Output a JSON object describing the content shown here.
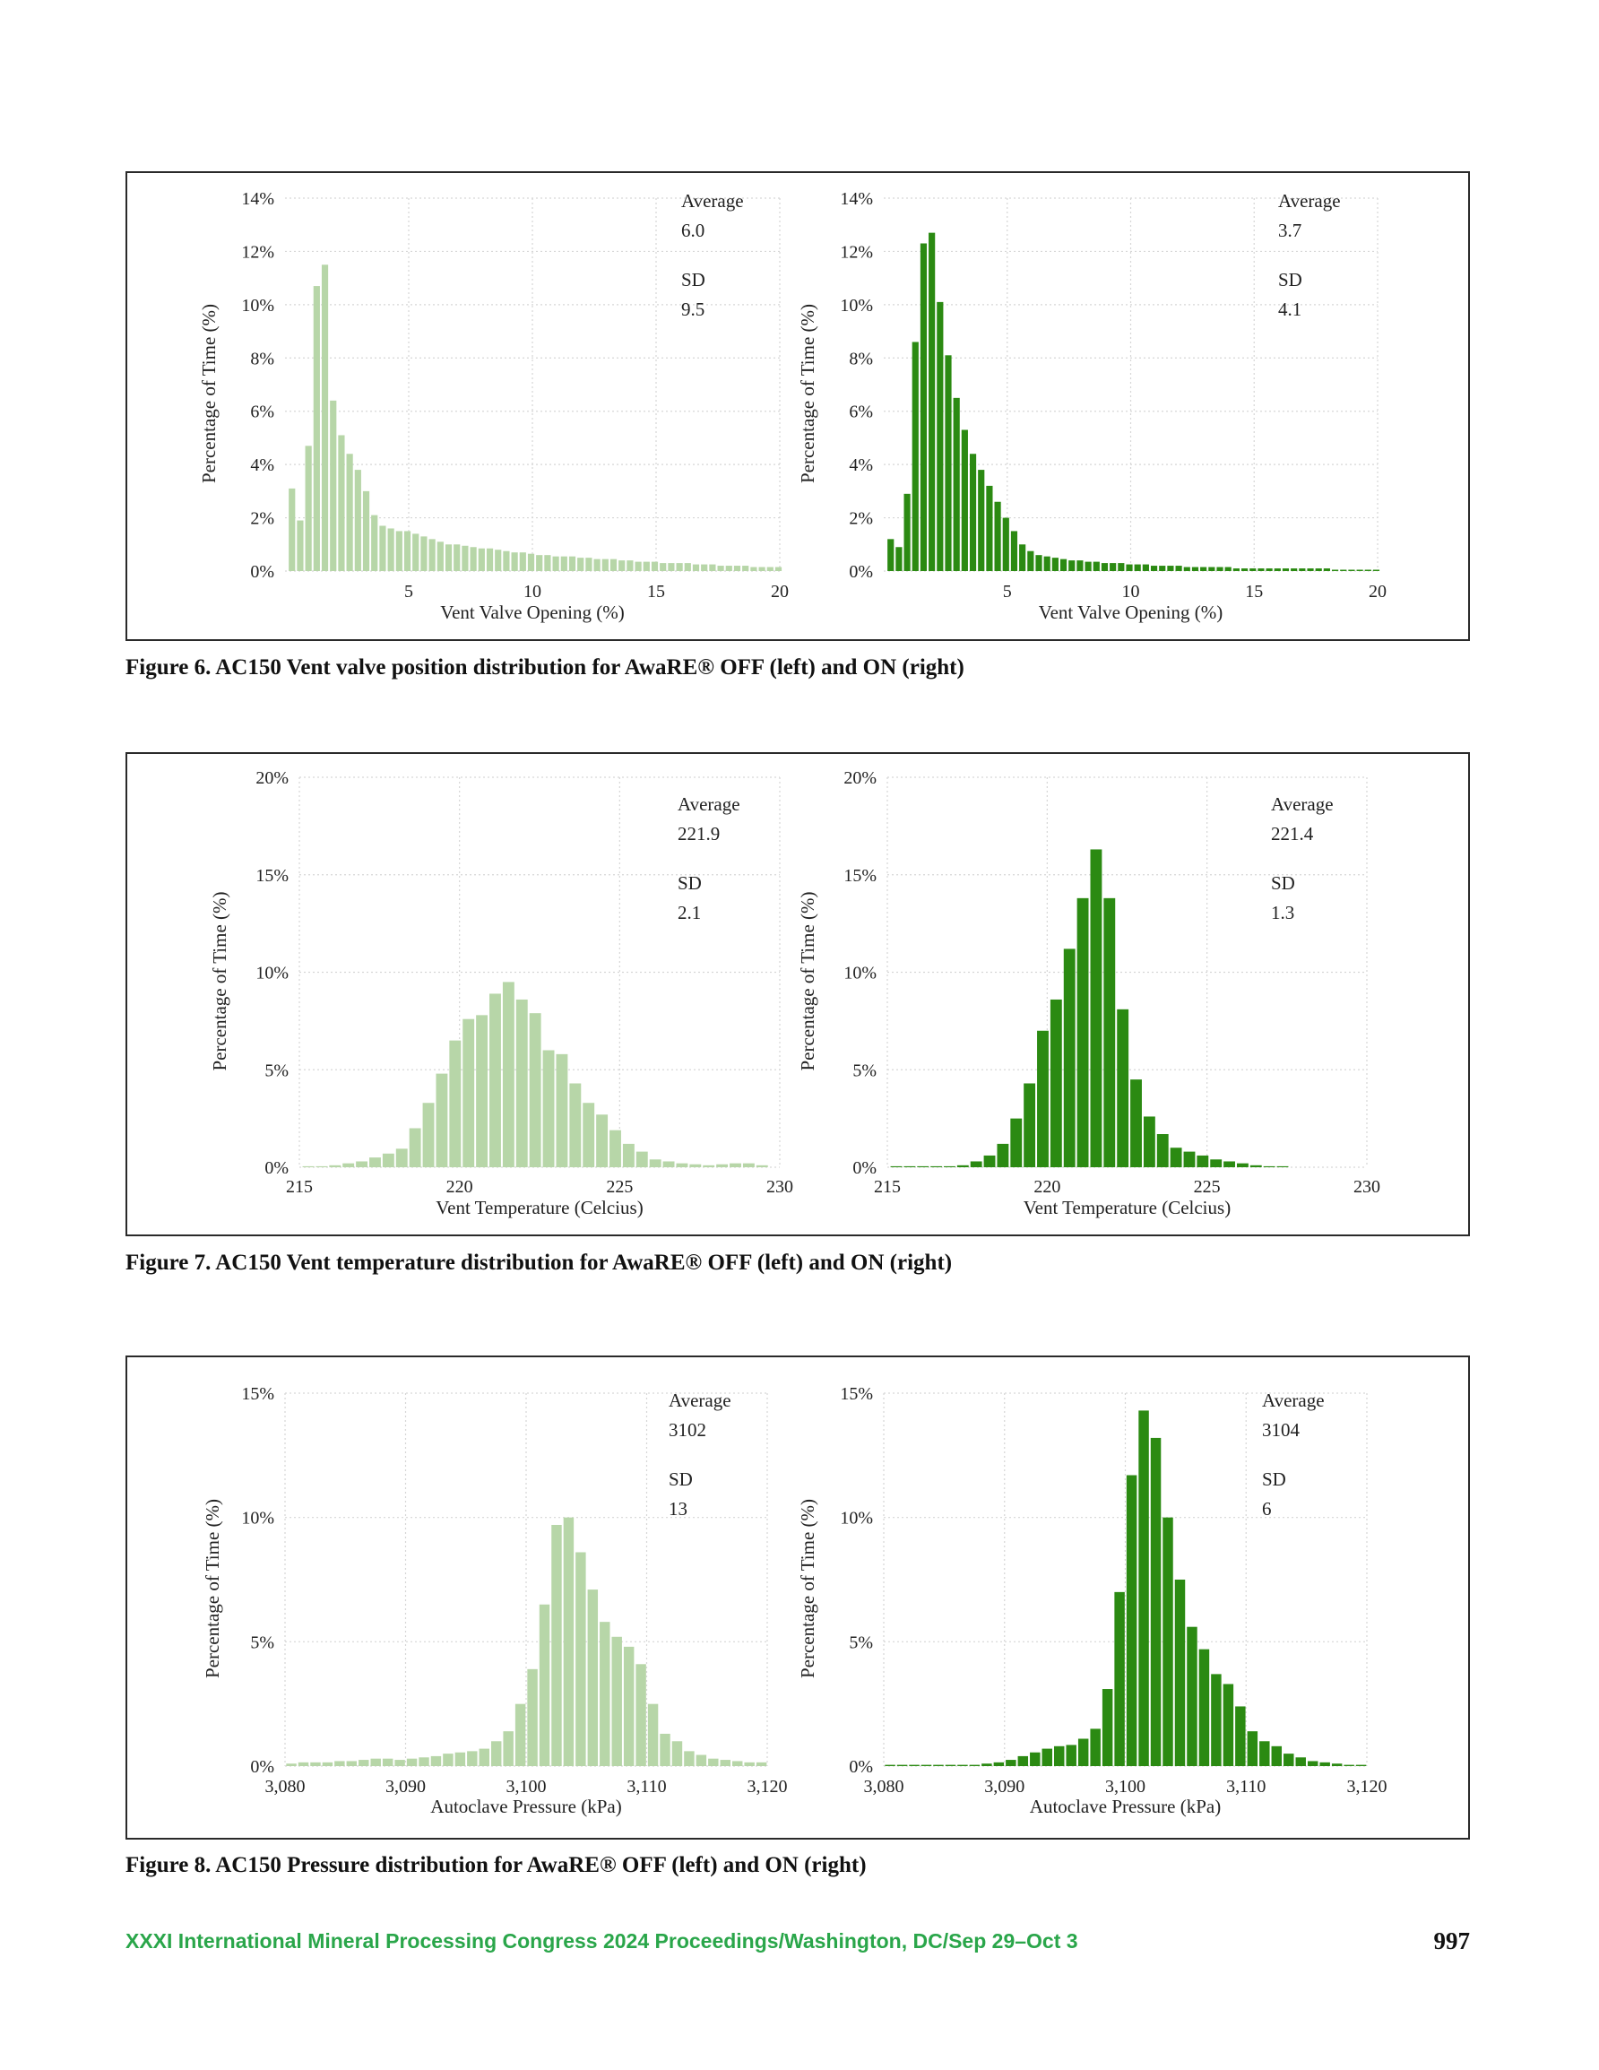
{
  "figures": [
    {
      "caption": "Figure 6. AC150 Vent valve position distribution for AwaRE® OFF (left) and ON (right)",
      "charts": [
        {
          "type": "bar",
          "panel": "left",
          "ylabel": "Percentage of Time (%)",
          "xlabel": "Vent Valve Opening (%)",
          "yticks": [
            "0%",
            "2%",
            "4%",
            "6%",
            "8%",
            "10%",
            "12%",
            "14%"
          ],
          "ylim": [
            0,
            14
          ],
          "xticks": [
            "5",
            "10",
            "15",
            "20"
          ],
          "xtick_values": [
            5,
            10,
            15,
            20
          ],
          "xlim": [
            0,
            20
          ],
          "bin_start": 0.15,
          "bin_width": 0.3333,
          "values": [
            3.1,
            1.9,
            4.7,
            10.7,
            11.5,
            6.4,
            5.1,
            4.4,
            3.8,
            3.0,
            2.1,
            1.7,
            1.6,
            1.5,
            1.5,
            1.4,
            1.3,
            1.2,
            1.1,
            1.0,
            1.0,
            0.95,
            0.9,
            0.85,
            0.85,
            0.8,
            0.75,
            0.7,
            0.7,
            0.65,
            0.6,
            0.6,
            0.55,
            0.55,
            0.55,
            0.5,
            0.5,
            0.45,
            0.45,
            0.45,
            0.4,
            0.4,
            0.35,
            0.35,
            0.35,
            0.3,
            0.3,
            0.3,
            0.3,
            0.25,
            0.25,
            0.25,
            0.2,
            0.2,
            0.2,
            0.2,
            0.15,
            0.15,
            0.15,
            0.15
          ],
          "stats": {
            "average_label": "Average",
            "average": "6.0",
            "sd_label": "SD",
            "sd": "9.5"
          },
          "color": "#b7d6a8"
        },
        {
          "type": "bar",
          "panel": "right",
          "ylabel": "Percentage of Time (%)",
          "xlabel": "Vent Valve Opening (%)",
          "yticks": [
            "0%",
            "2%",
            "4%",
            "6%",
            "8%",
            "10%",
            "12%",
            "14%"
          ],
          "ylim": [
            0,
            14
          ],
          "xticks": [
            "5",
            "10",
            "15",
            "20"
          ],
          "xtick_values": [
            5,
            10,
            15,
            20
          ],
          "xlim": [
            0,
            20
          ],
          "bin_start": 0.15,
          "bin_width": 0.3333,
          "values": [
            1.2,
            0.9,
            2.9,
            8.6,
            12.3,
            12.7,
            10.1,
            8.1,
            6.5,
            5.3,
            4.4,
            3.8,
            3.2,
            2.6,
            2.0,
            1.5,
            1.0,
            0.75,
            0.6,
            0.55,
            0.5,
            0.45,
            0.4,
            0.4,
            0.35,
            0.35,
            0.3,
            0.3,
            0.3,
            0.25,
            0.25,
            0.25,
            0.2,
            0.2,
            0.2,
            0.2,
            0.15,
            0.15,
            0.15,
            0.15,
            0.15,
            0.15,
            0.1,
            0.1,
            0.1,
            0.1,
            0.1,
            0.1,
            0.1,
            0.1,
            0.1,
            0.1,
            0.1,
            0.1,
            0.05,
            0.05,
            0.05,
            0.05,
            0.05,
            0.05
          ],
          "stats": {
            "average_label": "Average",
            "average": "3.7",
            "sd_label": "SD",
            "sd": "4.1"
          },
          "color": "#2b8a12"
        }
      ]
    },
    {
      "caption": "Figure 7. AC150 Vent temperature distribution for AwaRE® OFF (left) and ON (right)",
      "charts": [
        {
          "type": "bar",
          "panel": "left",
          "ylabel": "Percentage of Time (%)",
          "xlabel": "Vent Temperature (Celcius)",
          "yticks": [
            "0%",
            "5%",
            "10%",
            "15%",
            "20%"
          ],
          "ylim": [
            0,
            20
          ],
          "xticks": [
            "215",
            "220",
            "225",
            "230"
          ],
          "xtick_values": [
            215,
            220,
            225,
            230
          ],
          "xlim": [
            215,
            230
          ],
          "bin_start": 215.1,
          "bin_width": 0.4167,
          "values": [
            0.05,
            0.05,
            0.1,
            0.2,
            0.3,
            0.5,
            0.7,
            0.95,
            2.0,
            3.3,
            4.8,
            6.5,
            7.6,
            7.8,
            8.9,
            9.5,
            8.6,
            7.9,
            6.0,
            5.8,
            4.3,
            3.3,
            2.7,
            1.9,
            1.2,
            0.8,
            0.4,
            0.3,
            0.2,
            0.15,
            0.1,
            0.15,
            0.2,
            0.2,
            0.1
          ],
          "stats": {
            "average_label": "Average",
            "average": "221.9",
            "sd_label": "SD",
            "sd": "2.1"
          },
          "color": "#b7d6a8"
        },
        {
          "type": "bar",
          "panel": "right",
          "ylabel": "Percentage of Time (%)",
          "xlabel": "Vent Temperature (Celcius)",
          "yticks": [
            "0%",
            "5%",
            "10%",
            "15%",
            "20%"
          ],
          "ylim": [
            0,
            20
          ],
          "xticks": [
            "215",
            "220",
            "225",
            "230"
          ],
          "xtick_values": [
            215,
            220,
            225,
            230
          ],
          "xlim": [
            215,
            230
          ],
          "bin_start": 215.1,
          "bin_width": 0.4167,
          "values": [
            0.05,
            0.05,
            0.05,
            0.05,
            0.05,
            0.1,
            0.3,
            0.6,
            1.2,
            2.5,
            4.3,
            7.0,
            8.6,
            11.2,
            13.8,
            16.3,
            13.8,
            8.1,
            4.5,
            2.6,
            1.7,
            1.0,
            0.8,
            0.6,
            0.4,
            0.3,
            0.2,
            0.1,
            0.05,
            0.05
          ],
          "stats": {
            "average_label": "Average",
            "average": "221.4",
            "sd_label": "SD",
            "sd": "1.3"
          },
          "color": "#2b8a12"
        }
      ]
    },
    {
      "caption": "Figure 8. AC150 Pressure distribution for AwaRE® OFF (left) and ON (right)",
      "charts": [
        {
          "type": "bar",
          "panel": "left",
          "ylabel": "Percentage of Time (%)",
          "xlabel": "Autoclave Pressure (kPa)",
          "yticks": [
            "0%",
            "5%",
            "10%",
            "15%"
          ],
          "ylim": [
            0,
            15
          ],
          "xticks": [
            "3,080",
            "3,090",
            "3,100",
            "3,110",
            "3,120"
          ],
          "xtick_values": [
            3080,
            3090,
            3100,
            3110,
            3120
          ],
          "xlim": [
            3080,
            3120
          ],
          "bin_start": 3080.1,
          "bin_width": 1.0,
          "values": [
            0.1,
            0.15,
            0.15,
            0.15,
            0.2,
            0.2,
            0.25,
            0.3,
            0.3,
            0.25,
            0.3,
            0.35,
            0.4,
            0.5,
            0.55,
            0.6,
            0.7,
            1.0,
            1.4,
            2.5,
            3.9,
            6.5,
            9.7,
            10.0,
            8.6,
            7.1,
            5.8,
            5.2,
            4.8,
            4.1,
            2.5,
            1.3,
            1.0,
            0.6,
            0.45,
            0.3,
            0.25,
            0.2,
            0.15,
            0.15
          ],
          "stats": {
            "average_label": "Average",
            "average": "3102",
            "sd_label": "SD",
            "sd": "13"
          },
          "color": "#b7d6a8"
        },
        {
          "type": "bar",
          "panel": "right",
          "ylabel": "Percentage of Time (%)",
          "xlabel": "Autoclave Pressure (kPa)",
          "yticks": [
            "0%",
            "5%",
            "10%",
            "15%"
          ],
          "ylim": [
            0,
            15
          ],
          "xticks": [
            "3,080",
            "3,090",
            "3,100",
            "3,110",
            "3,120"
          ],
          "xtick_values": [
            3080,
            3090,
            3100,
            3110,
            3120
          ],
          "xlim": [
            3080,
            3120
          ],
          "bin_start": 3080.1,
          "bin_width": 1.0,
          "values": [
            0.05,
            0.05,
            0.05,
            0.05,
            0.05,
            0.05,
            0.05,
            0.05,
            0.1,
            0.15,
            0.25,
            0.4,
            0.55,
            0.7,
            0.8,
            0.85,
            1.1,
            1.5,
            3.1,
            7.0,
            11.7,
            14.3,
            13.2,
            10.0,
            7.5,
            5.6,
            4.7,
            3.7,
            3.3,
            2.4,
            1.4,
            1.0,
            0.8,
            0.5,
            0.35,
            0.2,
            0.15,
            0.1,
            0.05,
            0.05
          ],
          "stats": {
            "average_label": "Average",
            "average": "3104",
            "sd_label": "SD",
            "sd": "6"
          },
          "color": "#2b8a12"
        }
      ]
    }
  ],
  "footer": {
    "proceedings": "XXXI International Mineral Processing Congress 2024 Proceedings/Washington, DC/Sep 29–Oct 3",
    "page_number": "997"
  }
}
